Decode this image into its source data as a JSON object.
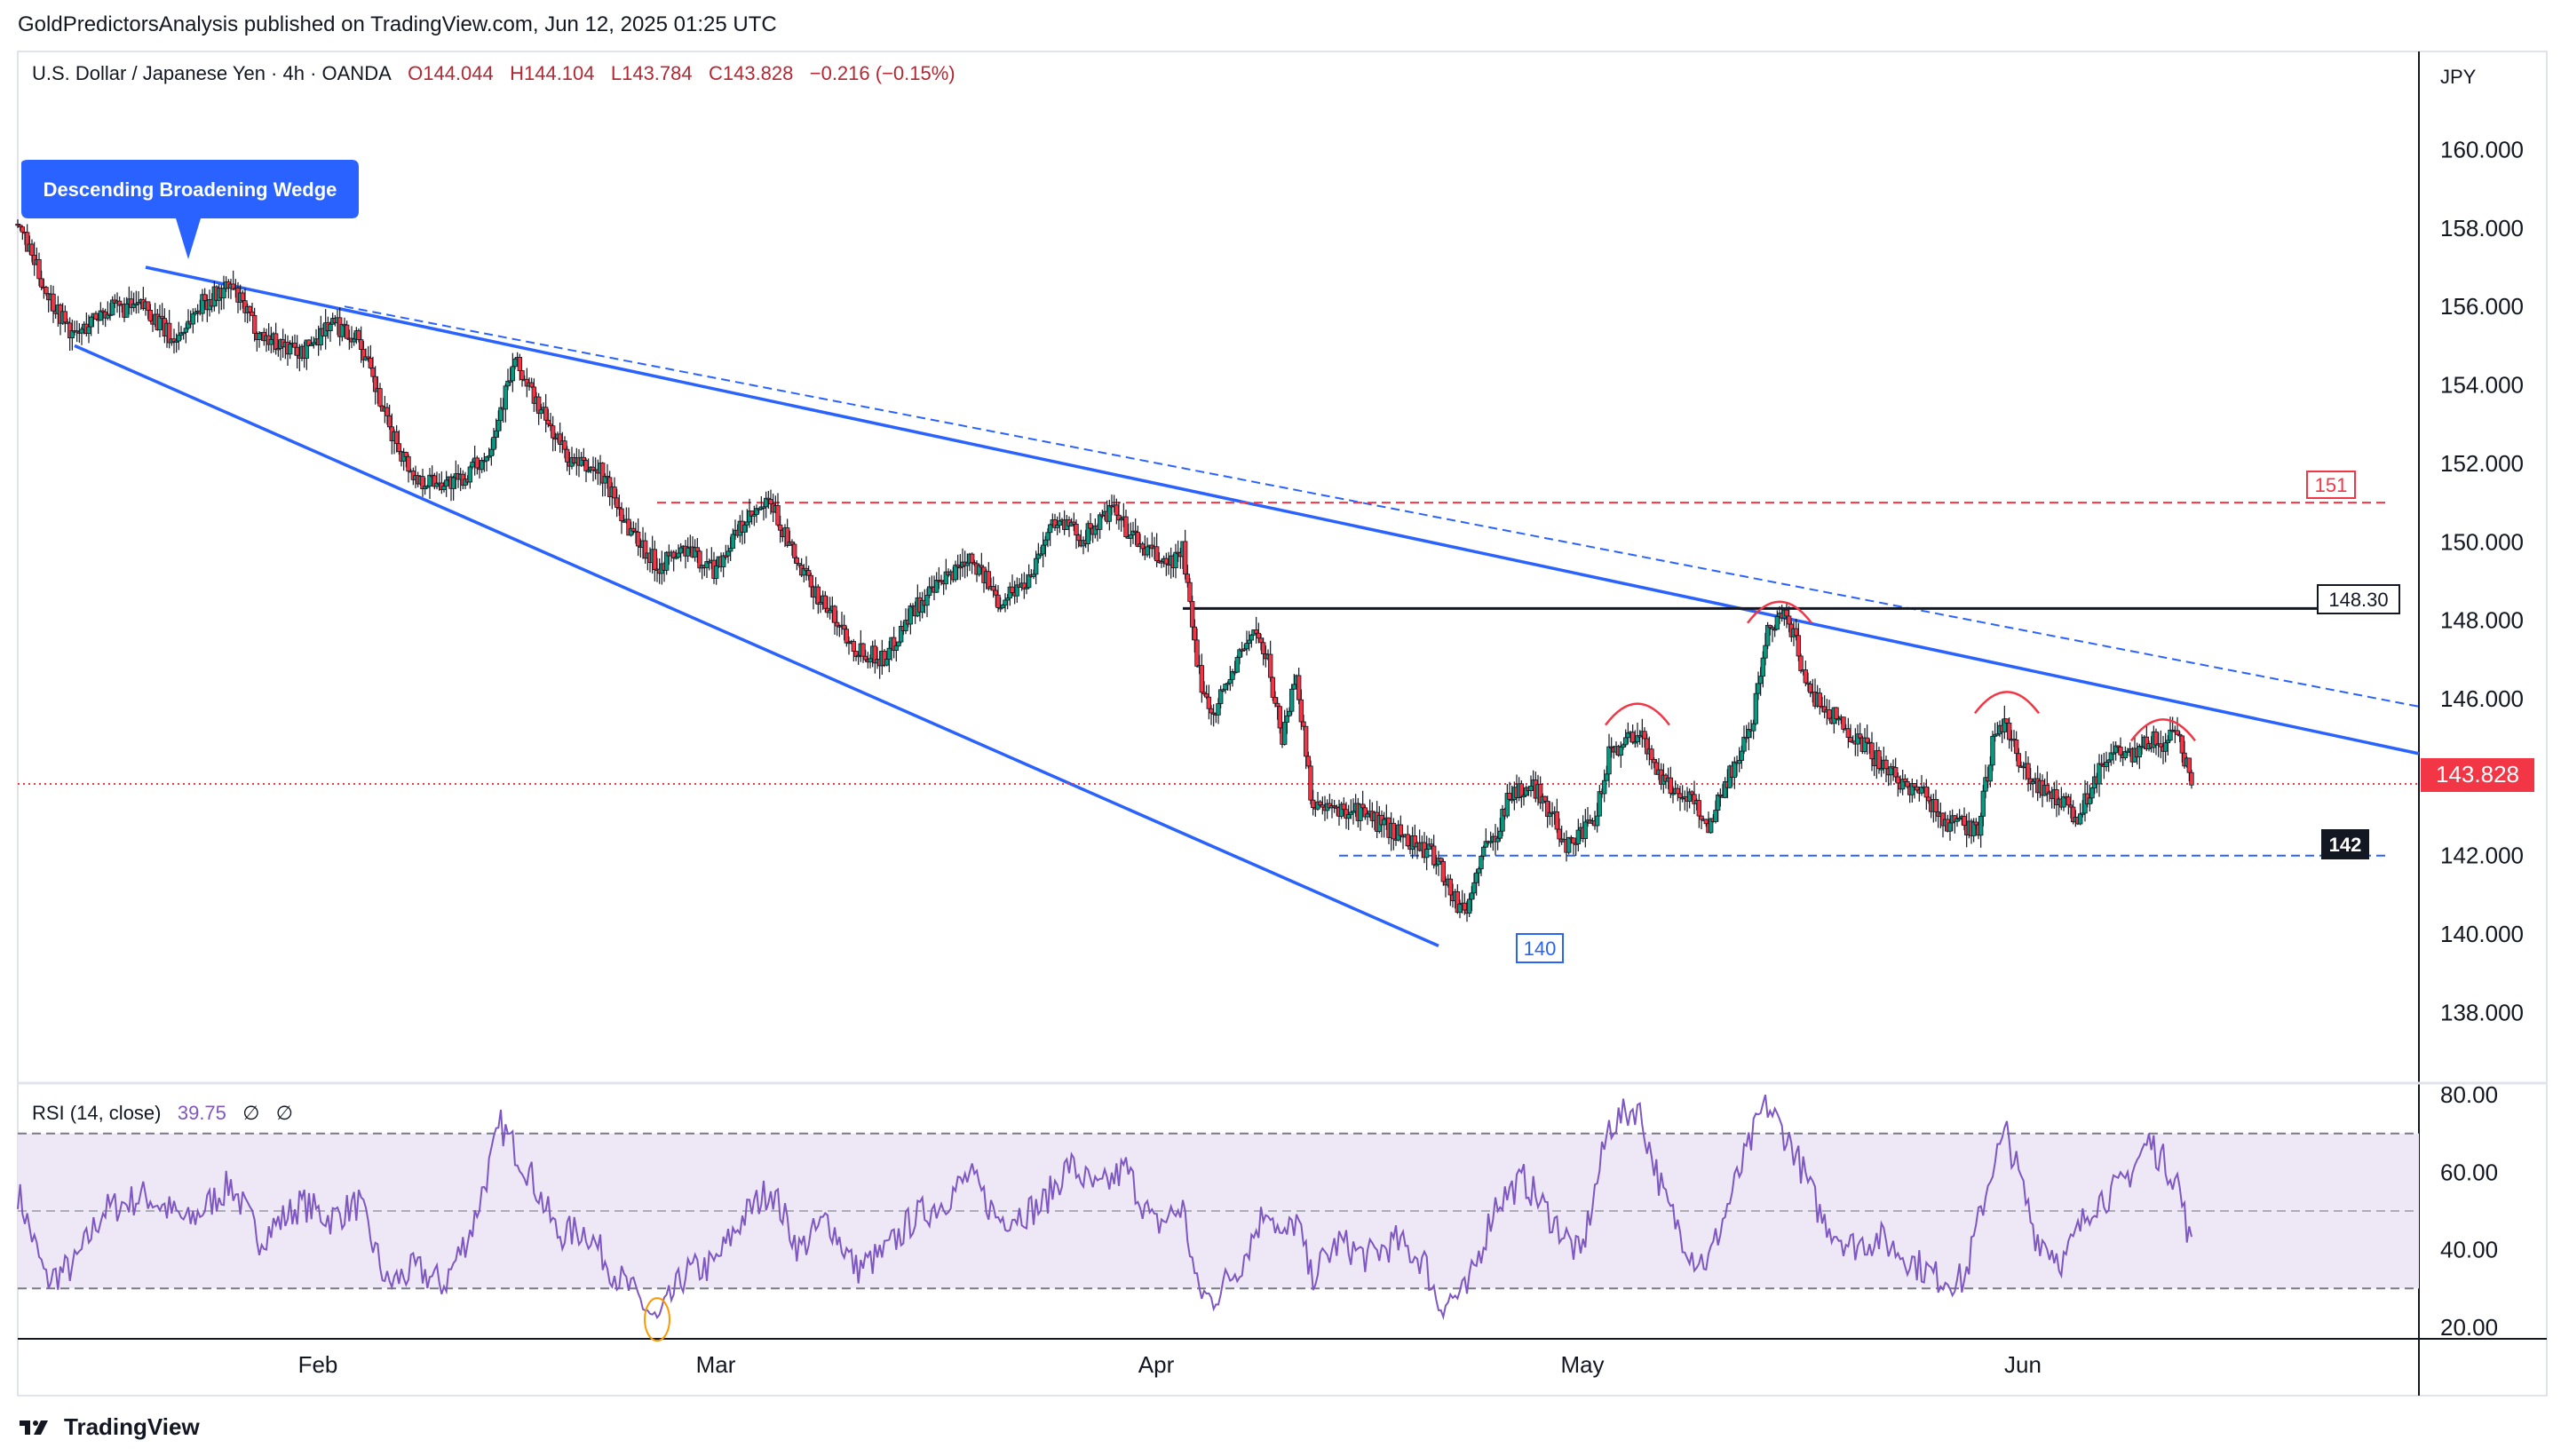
{
  "header": {
    "published": "GoldPredictorsAnalysis published on TradingView.com, Jun 12, 2025 01:25 UTC"
  },
  "legend": {
    "symbol": "U.S. Dollar / Japanese Yen · 4h · OANDA",
    "open": "O144.044",
    "high": "H144.104",
    "low": "L143.784",
    "close": "C143.828",
    "change": "−0.216 (−0.15%)"
  },
  "currency_label": "JPY",
  "rsi_legend": {
    "name": "RSI (14, close)",
    "value": "39.75",
    "extra1": "∅",
    "extra2": "∅"
  },
  "annotations": {
    "pattern_label": "Descending Broadening Wedge",
    "level_151": "151",
    "level_14830": "148.30",
    "last_price": "143.828",
    "level_142": "142",
    "level_140": "140"
  },
  "footer": {
    "brand": "TradingView"
  },
  "colors": {
    "up": "#089981",
    "down": "#f23645",
    "wedge": "#2962ff",
    "rsi": "#7e57c2",
    "rsi_band": "#ede7f6",
    "resistance": "#f23645",
    "support": "#2962ff"
  },
  "chart_data": [
    {
      "type": "candlestick",
      "title": "U.S. Dollar / Japanese Yen · 4h · OANDA",
      "x_axis": {
        "type": "date",
        "range": [
          "2025-01-10",
          "2025-06-28"
        ],
        "tick_labels": [
          "Feb",
          "Mar",
          "Apr",
          "May",
          "Jun"
        ],
        "ticks": [
          "2025-02-01",
          "2025-03-01",
          "2025-04-01",
          "2025-05-01",
          "2025-06-01"
        ]
      },
      "y_axis": {
        "label": "JPY",
        "range": [
          136.2,
          162.5
        ],
        "tick_labels": [
          "160.000",
          "158.000",
          "156.000",
          "154.000",
          "152.000",
          "150.000",
          "148.000",
          "146.000",
          "144.000",
          "142.000",
          "140.000",
          "138.000"
        ],
        "ticks": [
          160,
          158,
          156,
          154,
          152,
          150,
          148,
          146,
          144,
          142,
          140,
          138
        ]
      },
      "grid": false,
      "price_path": [
        [
          "2025-01-10",
          158.1
        ],
        [
          "2025-01-12",
          156.4
        ],
        [
          "2025-01-14",
          155.2
        ],
        [
          "2025-01-16",
          155.9
        ],
        [
          "2025-01-19",
          156.0
        ],
        [
          "2025-01-21",
          155.1
        ],
        [
          "2025-01-23",
          156.1
        ],
        [
          "2025-01-25",
          156.5
        ],
        [
          "2025-01-27",
          155.3
        ],
        [
          "2025-01-30",
          154.8
        ],
        [
          "2025-02-01",
          155.6
        ],
        [
          "2025-02-03",
          155.2
        ],
        [
          "2025-02-05",
          153.0
        ],
        [
          "2025-02-07",
          151.6
        ],
        [
          "2025-02-10",
          151.5
        ],
        [
          "2025-02-12",
          152.2
        ],
        [
          "2025-02-14",
          154.6
        ],
        [
          "2025-02-16",
          153.2
        ],
        [
          "2025-02-18",
          152.0
        ],
        [
          "2025-02-20",
          151.8
        ],
        [
          "2025-02-22",
          150.4
        ],
        [
          "2025-02-24",
          149.4
        ],
        [
          "2025-02-26",
          149.8
        ],
        [
          "2025-02-28",
          149.3
        ],
        [
          "2025-03-02",
          150.4
        ],
        [
          "2025-03-04",
          151.0
        ],
        [
          "2025-03-06",
          149.3
        ],
        [
          "2025-03-08",
          148.3
        ],
        [
          "2025-03-10",
          147.3
        ],
        [
          "2025-03-12",
          147.0
        ],
        [
          "2025-03-14",
          148.3
        ],
        [
          "2025-03-16",
          148.9
        ],
        [
          "2025-03-18",
          149.7
        ],
        [
          "2025-03-20",
          148.5
        ],
        [
          "2025-03-22",
          149.0
        ],
        [
          "2025-03-24",
          150.6
        ],
        [
          "2025-03-26",
          150.1
        ],
        [
          "2025-03-28",
          150.8
        ],
        [
          "2025-03-30",
          149.9
        ],
        [
          "2025-04-01",
          149.4
        ],
        [
          "2025-04-02",
          149.8
        ],
        [
          "2025-04-03",
          146.8
        ],
        [
          "2025-04-04",
          145.6
        ],
        [
          "2025-04-05",
          146.3
        ],
        [
          "2025-04-07",
          147.8
        ],
        [
          "2025-04-08",
          146.9
        ],
        [
          "2025-04-09",
          145.0
        ],
        [
          "2025-04-10",
          146.7
        ],
        [
          "2025-04-11",
          143.5
        ],
        [
          "2025-04-12",
          143.1
        ],
        [
          "2025-04-14",
          143.2
        ],
        [
          "2025-04-16",
          142.8
        ],
        [
          "2025-04-18",
          142.4
        ],
        [
          "2025-04-20",
          141.9
        ],
        [
          "2025-04-21",
          140.9
        ],
        [
          "2025-04-22",
          140.6
        ],
        [
          "2025-04-23",
          142.0
        ],
        [
          "2025-04-24",
          142.5
        ],
        [
          "2025-04-25",
          143.6
        ],
        [
          "2025-04-27",
          143.7
        ],
        [
          "2025-04-29",
          142.3
        ],
        [
          "2025-05-01",
          142.8
        ],
        [
          "2025-05-02",
          144.6
        ],
        [
          "2025-05-04",
          145.2
        ],
        [
          "2025-05-06",
          143.8
        ],
        [
          "2025-05-08",
          143.4
        ],
        [
          "2025-05-09",
          142.7
        ],
        [
          "2025-05-10",
          143.7
        ],
        [
          "2025-05-12",
          145.2
        ],
        [
          "2025-05-13",
          147.6
        ],
        [
          "2025-05-14",
          148.2
        ],
        [
          "2025-05-15",
          147.7
        ],
        [
          "2025-05-16",
          146.2
        ],
        [
          "2025-05-18",
          145.5
        ],
        [
          "2025-05-20",
          144.8
        ],
        [
          "2025-05-22",
          144.0
        ],
        [
          "2025-05-24",
          143.6
        ],
        [
          "2025-05-26",
          142.8
        ],
        [
          "2025-05-28",
          142.7
        ],
        [
          "2025-05-29",
          144.8
        ],
        [
          "2025-05-30",
          145.4
        ],
        [
          "2025-05-31",
          144.2
        ],
        [
          "2025-06-02",
          143.6
        ],
        [
          "2025-06-04",
          143.0
        ],
        [
          "2025-06-05",
          143.8
        ],
        [
          "2025-06-06",
          144.6
        ],
        [
          "2025-06-08",
          144.5
        ],
        [
          "2025-06-09",
          145.0
        ],
        [
          "2025-06-10",
          144.8
        ],
        [
          "2025-06-11",
          145.2
        ],
        [
          "2025-06-12",
          143.8
        ]
      ],
      "annotations": [
        {
          "type": "trendline",
          "name": "wedge upper",
          "from": [
            "2025-01-19",
            157.0
          ],
          "to": [
            "2025-06-28",
            144.6
          ]
        },
        {
          "type": "trendline",
          "name": "wedge lower",
          "from": [
            "2025-01-14",
            155.0
          ],
          "to": [
            "2025-04-20",
            139.7
          ]
        },
        {
          "type": "trendline",
          "name": "dashed resistance",
          "from": [
            "2025-02-02",
            156.0
          ],
          "to": [
            "2025-06-28",
            145.8
          ]
        },
        {
          "type": "hline",
          "value": 151,
          "style": "dashed",
          "from": "2025-02-24",
          "to": "2025-06-26",
          "label": "151"
        },
        {
          "type": "hline",
          "value": 148.3,
          "style": "solid",
          "from": "2025-04-02",
          "to": "2025-06-26",
          "label": "148.30"
        },
        {
          "type": "hline",
          "value": 142,
          "style": "dashed",
          "from": "2025-04-13",
          "to": "2025-06-26",
          "label": "142"
        },
        {
          "type": "hline",
          "value": 143.828,
          "style": "dotted",
          "from": "2025-01-10",
          "to": "2025-06-28",
          "label": "143.828"
        },
        {
          "type": "label",
          "text": "140",
          "at": [
            "2025-04-20",
            139.4
          ]
        },
        {
          "type": "label",
          "text": "Descending Broadening Wedge",
          "at": [
            "2025-01-22",
            158.2
          ]
        },
        {
          "type": "arc",
          "at": [
            "2025-05-04",
            145.6
          ]
        },
        {
          "type": "arc",
          "at": [
            "2025-05-14",
            148.2
          ]
        },
        {
          "type": "arc",
          "at": [
            "2025-05-30",
            145.9
          ]
        },
        {
          "type": "arc",
          "at": [
            "2025-06-10",
            145.2
          ]
        }
      ]
    },
    {
      "type": "line",
      "title": "RSI (14, close)",
      "y_axis": {
        "range": [
          17.0,
          83.0
        ],
        "tick_labels": [
          "80.00",
          "60.00",
          "40.00",
          "20.00"
        ],
        "ticks": [
          80,
          60,
          40,
          20
        ]
      },
      "bands": {
        "upper": 70,
        "middle": 50,
        "lower": 30
      },
      "series": [
        {
          "name": "RSI (14, close)",
          "values": [
            [
              "2025-01-10",
              55
            ],
            [
              "2025-01-12",
              32
            ],
            [
              "2025-01-14",
              36
            ],
            [
              "2025-01-16",
              50
            ],
            [
              "2025-01-19",
              54
            ],
            [
              "2025-01-22",
              47
            ],
            [
              "2025-01-25",
              57
            ],
            [
              "2025-01-27",
              43
            ],
            [
              "2025-01-30",
              52
            ],
            [
              "2025-02-01",
              48
            ],
            [
              "2025-02-03",
              52
            ],
            [
              "2025-02-05",
              31
            ],
            [
              "2025-02-07",
              35
            ],
            [
              "2025-02-09",
              31
            ],
            [
              "2025-02-11",
              46
            ],
            [
              "2025-02-13",
              72
            ],
            [
              "2025-02-15",
              60
            ],
            [
              "2025-02-17",
              44
            ],
            [
              "2025-02-19",
              45
            ],
            [
              "2025-02-21",
              34
            ],
            [
              "2025-02-23",
              26
            ],
            [
              "2025-02-24",
              21
            ],
            [
              "2025-02-26",
              34
            ],
            [
              "2025-02-28",
              36
            ],
            [
              "2025-03-02",
              48
            ],
            [
              "2025-03-04",
              56
            ],
            [
              "2025-03-06",
              40
            ],
            [
              "2025-03-08",
              48
            ],
            [
              "2025-03-10",
              35
            ],
            [
              "2025-03-12",
              39
            ],
            [
              "2025-03-14",
              48
            ],
            [
              "2025-03-16",
              52
            ],
            [
              "2025-03-18",
              59
            ],
            [
              "2025-03-20",
              48
            ],
            [
              "2025-03-23",
              51
            ],
            [
              "2025-03-25",
              62
            ],
            [
              "2025-03-27",
              55
            ],
            [
              "2025-03-29",
              61
            ],
            [
              "2025-03-31",
              46
            ],
            [
              "2025-04-02",
              51
            ],
            [
              "2025-04-03",
              30
            ],
            [
              "2025-04-04",
              27
            ],
            [
              "2025-04-06",
              36
            ],
            [
              "2025-04-08",
              52
            ],
            [
              "2025-04-09",
              42
            ],
            [
              "2025-04-10",
              48
            ],
            [
              "2025-04-11",
              33
            ],
            [
              "2025-04-13",
              42
            ],
            [
              "2025-04-15",
              38
            ],
            [
              "2025-04-17",
              42
            ],
            [
              "2025-04-19",
              37
            ],
            [
              "2025-04-20",
              26
            ],
            [
              "2025-04-22",
              29
            ],
            [
              "2025-04-24",
              52
            ],
            [
              "2025-04-26",
              58
            ],
            [
              "2025-04-28",
              48
            ],
            [
              "2025-04-30",
              38
            ],
            [
              "2025-05-02",
              72
            ],
            [
              "2025-05-04",
              77
            ],
            [
              "2025-05-06",
              52
            ],
            [
              "2025-05-08",
              38
            ],
            [
              "2025-05-09",
              37
            ],
            [
              "2025-05-11",
              58
            ],
            [
              "2025-05-13",
              78
            ],
            [
              "2025-05-15",
              66
            ],
            [
              "2025-05-17",
              48
            ],
            [
              "2025-05-19",
              41
            ],
            [
              "2025-05-21",
              43
            ],
            [
              "2025-05-23",
              38
            ],
            [
              "2025-05-25",
              33
            ],
            [
              "2025-05-27",
              32
            ],
            [
              "2025-05-29",
              62
            ],
            [
              "2025-05-30",
              70
            ],
            [
              "2025-06-01",
              44
            ],
            [
              "2025-06-03",
              37
            ],
            [
              "2025-06-05",
              52
            ],
            [
              "2025-06-07",
              56
            ],
            [
              "2025-06-09",
              68
            ],
            [
              "2025-06-11",
              58
            ],
            [
              "2025-06-12",
              40
            ]
          ]
        }
      ],
      "annotations": [
        {
          "type": "ellipse",
          "at": [
            "2025-02-24",
            22
          ]
        }
      ]
    }
  ]
}
